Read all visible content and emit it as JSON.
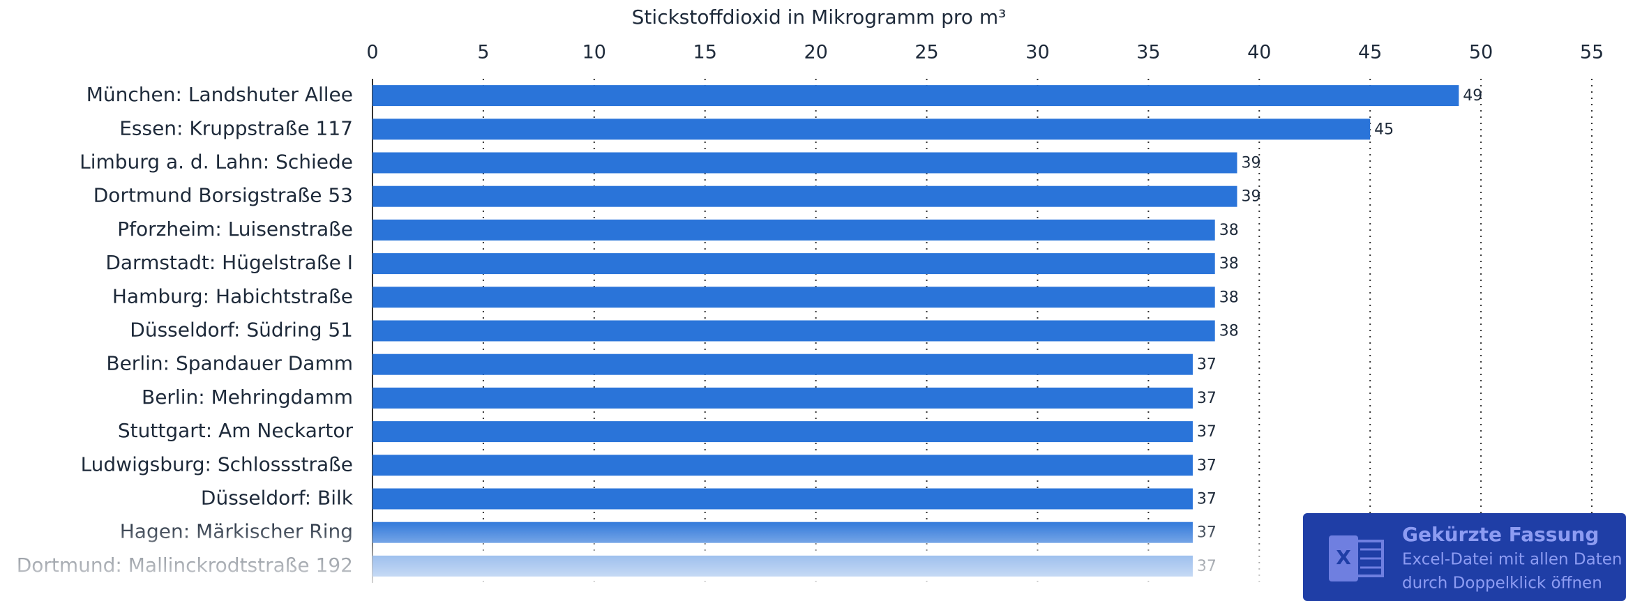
{
  "chart_data": {
    "type": "barh",
    "title": "Stickstoffdioxid in Mikrogramm pro m³",
    "categories": [
      "München: Landshuter Allee",
      "Essen: Kruppstraße 117",
      "Limburg a. d. Lahn: Schiede",
      "Dortmund Borsigstraße 53",
      "Pforzheim: Luisenstraße",
      "Darmstadt: Hügelstraße I",
      "Hamburg: Habichtstraße",
      "Düsseldorf: Südring 51",
      "Berlin: Spandauer Damm",
      "Berlin: Mehringdamm",
      "Stuttgart: Am Neckartor",
      "Ludwigsburg: Schlossstraße",
      "Düsseldorf: Bilk",
      "Hagen: Märkischer Ring",
      "Dortmund: Mallinckrodtstraße 192"
    ],
    "values": [
      49,
      45,
      39,
      39,
      38,
      38,
      38,
      38,
      37,
      37,
      37,
      37,
      37,
      37,
      37
    ],
    "color": "#2a74d9",
    "xlim": [
      0,
      55
    ],
    "xticks": [
      0,
      5,
      10,
      15,
      20,
      25,
      30,
      35,
      40,
      45,
      50,
      55
    ],
    "grid": true
  },
  "overlay": {
    "title": "Gekürzte Fassung",
    "line1": "Excel-Datei mit allen Daten",
    "line2": "durch Doppelklick öffnen"
  }
}
